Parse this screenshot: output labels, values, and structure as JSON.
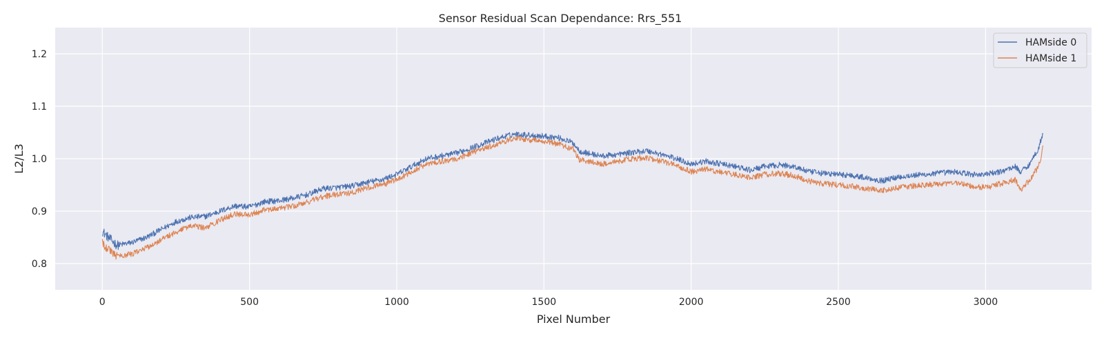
{
  "chart_data": {
    "type": "line",
    "title": "Sensor Residual Scan Dependance: Rrs_551",
    "xlabel": "Pixel Number",
    "ylabel": "L2/L3",
    "xlim": [
      -160,
      3360
    ],
    "ylim": [
      0.75,
      1.25
    ],
    "xticks": [
      0,
      500,
      1000,
      1500,
      2000,
      2500,
      3000
    ],
    "yticks": [
      0.8,
      0.9,
      1.0,
      1.1,
      1.2
    ],
    "xtick_labels": [
      "0",
      "500",
      "1000",
      "1500",
      "2000",
      "2500",
      "3000"
    ],
    "ytick_labels": [
      "0.8",
      "0.9",
      "1.0",
      "1.1",
      "1.2"
    ],
    "grid": true,
    "legend_position": "top-right",
    "series": [
      {
        "name": "HAMside 0",
        "color": "#4c72b0",
        "x": [
          0,
          20,
          50,
          100,
          150,
          200,
          250,
          300,
          350,
          400,
          450,
          500,
          550,
          600,
          650,
          700,
          750,
          800,
          850,
          900,
          950,
          1000,
          1050,
          1100,
          1150,
          1200,
          1250,
          1300,
          1350,
          1400,
          1450,
          1500,
          1550,
          1600,
          1620,
          1650,
          1700,
          1750,
          1800,
          1850,
          1900,
          1950,
          2000,
          2050,
          2100,
          2150,
          2200,
          2250,
          2300,
          2350,
          2400,
          2450,
          2500,
          2550,
          2600,
          2650,
          2700,
          2750,
          2800,
          2850,
          2900,
          2950,
          3000,
          3050,
          3100,
          3120,
          3150,
          3180,
          3195
        ],
        "values": [
          0.862,
          0.85,
          0.835,
          0.84,
          0.85,
          0.865,
          0.88,
          0.888,
          0.89,
          0.9,
          0.91,
          0.908,
          0.918,
          0.92,
          0.925,
          0.932,
          0.943,
          0.945,
          0.948,
          0.955,
          0.96,
          0.97,
          0.985,
          1.0,
          1.005,
          1.01,
          1.02,
          1.03,
          1.04,
          1.047,
          1.045,
          1.043,
          1.04,
          1.03,
          1.015,
          1.01,
          1.005,
          1.008,
          1.012,
          1.015,
          1.008,
          1.0,
          0.99,
          0.995,
          0.99,
          0.985,
          0.978,
          0.985,
          0.988,
          0.985,
          0.975,
          0.972,
          0.97,
          0.968,
          0.963,
          0.958,
          0.965,
          0.968,
          0.97,
          0.973,
          0.975,
          0.97,
          0.97,
          0.975,
          0.985,
          0.975,
          0.99,
          1.02,
          1.05
        ]
      },
      {
        "name": "HAMside 1",
        "color": "#dd8452",
        "x": [
          0,
          20,
          50,
          100,
          150,
          200,
          250,
          300,
          350,
          400,
          450,
          500,
          550,
          600,
          650,
          700,
          750,
          800,
          850,
          900,
          950,
          1000,
          1050,
          1100,
          1150,
          1200,
          1250,
          1300,
          1350,
          1400,
          1450,
          1500,
          1550,
          1600,
          1620,
          1650,
          1700,
          1750,
          1800,
          1850,
          1900,
          1950,
          2000,
          2050,
          2100,
          2150,
          2200,
          2250,
          2300,
          2350,
          2400,
          2450,
          2500,
          2550,
          2600,
          2650,
          2700,
          2750,
          2800,
          2850,
          2900,
          2950,
          3000,
          3050,
          3100,
          3120,
          3150,
          3180,
          3195
        ],
        "values": [
          0.84,
          0.828,
          0.815,
          0.818,
          0.83,
          0.845,
          0.86,
          0.872,
          0.868,
          0.883,
          0.895,
          0.893,
          0.902,
          0.905,
          0.91,
          0.918,
          0.928,
          0.932,
          0.935,
          0.945,
          0.95,
          0.96,
          0.975,
          0.99,
          0.995,
          1.0,
          1.01,
          1.02,
          1.03,
          1.04,
          1.036,
          1.033,
          1.028,
          1.018,
          0.998,
          0.995,
          0.99,
          0.995,
          1.0,
          1.002,
          0.995,
          0.987,
          0.975,
          0.98,
          0.975,
          0.97,
          0.963,
          0.97,
          0.972,
          0.968,
          0.957,
          0.952,
          0.95,
          0.948,
          0.942,
          0.94,
          0.945,
          0.948,
          0.95,
          0.952,
          0.953,
          0.948,
          0.945,
          0.952,
          0.96,
          0.94,
          0.96,
          0.985,
          1.02
        ]
      }
    ]
  }
}
